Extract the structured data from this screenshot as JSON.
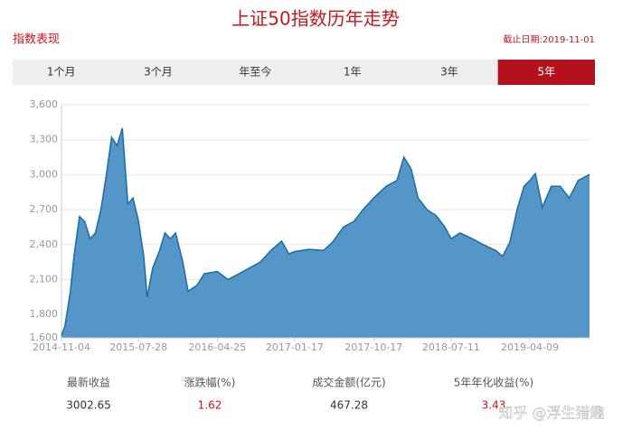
{
  "header": {
    "title": "上证50指数历年走势",
    "section": "指数表现",
    "cutoff": "截止日期:2019-11-01"
  },
  "tabs": {
    "items": [
      "1个月",
      "3个月",
      "年至今",
      "1年",
      "3年",
      "5年"
    ],
    "active": 5
  },
  "chart_data": {
    "type": "area",
    "color": "#4a90c4",
    "line_color": "#1d6aa6",
    "grid": true,
    "x": [
      "2014-11-04",
      "2014-11-16",
      "2014-12-05",
      "2014-12-17",
      "2015-01-05",
      "2015-01-23",
      "2015-02-11",
      "2015-03-01",
      "2015-03-20",
      "2015-04-08",
      "2015-04-26",
      "2015-05-15",
      "2015-06-02",
      "2015-06-21",
      "2015-07-09",
      "2015-07-28",
      "2015-08-15",
      "2015-08-27",
      "2015-09-15",
      "2015-10-09",
      "2015-10-27",
      "2015-11-15",
      "2015-12-03",
      "2015-12-28",
      "2016-01-15",
      "2016-02-15",
      "2016-03-11",
      "2016-04-25",
      "2016-06-01",
      "2016-07-08",
      "2016-08-14",
      "2016-09-20",
      "2016-10-27",
      "2016-12-03",
      "2016-12-28",
      "2017-01-17",
      "2017-03-08",
      "2017-04-27",
      "2017-05-28",
      "2017-07-04",
      "2017-08-10",
      "2017-09-10",
      "2017-10-17",
      "2017-11-29",
      "2018-01-05",
      "2018-01-29",
      "2018-02-23",
      "2018-03-19",
      "2018-04-19",
      "2018-05-20",
      "2018-06-20",
      "2018-07-11",
      "2018-08-11",
      "2018-09-23",
      "2018-10-30",
      "2018-12-12",
      "2019-01-05",
      "2019-01-30",
      "2019-02-24",
      "2019-03-20",
      "2019-04-09",
      "2019-04-28",
      "2019-05-22",
      "2019-06-22",
      "2019-07-23",
      "2019-08-23",
      "2019-09-23",
      "2019-11-01"
    ],
    "values": [
      1620,
      1700,
      2000,
      2300,
      2640,
      2600,
      2450,
      2500,
      2700,
      3000,
      3320,
      3250,
      3400,
      2750,
      2800,
      2600,
      2300,
      1950,
      2200,
      2350,
      2500,
      2450,
      2500,
      2250,
      2000,
      2050,
      2150,
      2170,
      2100,
      2150,
      2200,
      2250,
      2350,
      2430,
      2320,
      2340,
      2360,
      2350,
      2420,
      2550,
      2600,
      2700,
      2800,
      2900,
      2950,
      3150,
      3050,
      2800,
      2700,
      2650,
      2550,
      2450,
      2500,
      2450,
      2400,
      2350,
      2300,
      2420,
      2700,
      2900,
      2950,
      3010,
      2720,
      2900,
      2900,
      2800,
      2950,
      3002.65
    ],
    "xlim": [
      "2014-11-04",
      "2019-11-01"
    ],
    "xticks": [
      "2014-11-04",
      "2015-07-28",
      "2016-04-25",
      "2017-01-17",
      "2017-10-17",
      "2018-07-11",
      "2019-04-09"
    ],
    "ylim": [
      1600,
      3600
    ],
    "yticks": [
      {
        "value": 1600,
        "label": "1,600"
      },
      {
        "value": 1800,
        "label": "1,800"
      },
      {
        "value": 2100,
        "label": "2,100"
      },
      {
        "value": 2400,
        "label": "2,400"
      },
      {
        "value": 2700,
        "label": "2,700"
      },
      {
        "value": 3000,
        "label": "3,000"
      },
      {
        "value": 3300,
        "label": "3,300"
      },
      {
        "value": 3600,
        "label": "3,600"
      }
    ]
  },
  "stats": [
    {
      "label": "最新收益",
      "value": "3002.65",
      "highlight": false
    },
    {
      "label": "涨跌幅(%)",
      "value": "1.62",
      "highlight": true
    },
    {
      "label": "成交金额(亿元)",
      "value": "467.28",
      "highlight": false
    },
    {
      "label": "5年年化收益(%)",
      "value": "3.43",
      "highlight": true
    }
  ],
  "watermark": "知乎 @浮生猎趣"
}
